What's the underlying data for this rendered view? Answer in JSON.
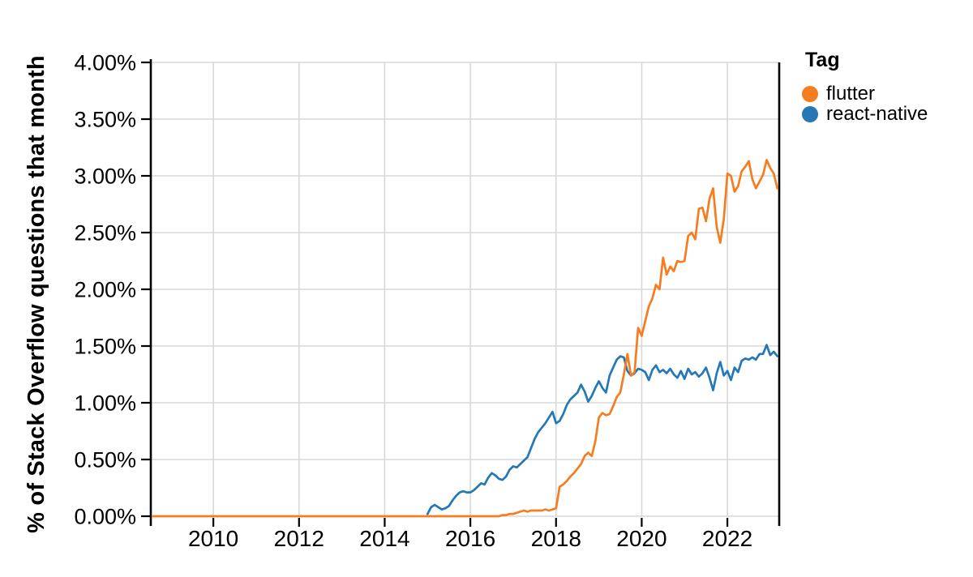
{
  "page": {
    "background": "#ffffff"
  },
  "axes": {
    "line_color": "#000000",
    "grid_color": "#d8d8d8",
    "tick_label_color": "#000000"
  },
  "chart_data": {
    "type": "line",
    "title": "",
    "xlabel": "",
    "ylabel": "% of Stack Overflow questions that month",
    "grid": true,
    "xlim": [
      2008.54,
      2023.21
    ],
    "ylim": [
      0,
      4
    ],
    "x_tick_years": [
      2010,
      2012,
      2014,
      2016,
      2018,
      2020,
      2022
    ],
    "x_tick_labels": [
      "2010",
      "2012",
      "2014",
      "2016",
      "2018",
      "2020",
      "2022"
    ],
    "y_tick_values": [
      0,
      0.5,
      1,
      1.5,
      2,
      2.5,
      3,
      3.5,
      4
    ],
    "y_tick_labels": [
      "0.00%",
      "0.50%",
      "1.00%",
      "1.50%",
      "2.00%",
      "2.50%",
      "3.00%",
      "3.50%",
      "4.00%"
    ],
    "legend": {
      "title": "Tag",
      "position": "right"
    },
    "series": [
      {
        "name": "react-native",
        "color": "#2478b5",
        "start_year": 2015,
        "start_month": 1,
        "monthly_percent": [
          0.02,
          0.08,
          0.1,
          0.08,
          0.06,
          0.07,
          0.09,
          0.14,
          0.18,
          0.21,
          0.22,
          0.21,
          0.21,
          0.23,
          0.26,
          0.29,
          0.28,
          0.34,
          0.38,
          0.36,
          0.33,
          0.32,
          0.35,
          0.41,
          0.44,
          0.43,
          0.46,
          0.49,
          0.52,
          0.6,
          0.68,
          0.74,
          0.78,
          0.82,
          0.87,
          0.92,
          0.82,
          0.84,
          0.9,
          0.98,
          1.03,
          1.06,
          1.09,
          1.16,
          1.1,
          1.01,
          1.06,
          1.13,
          1.19,
          1.13,
          1.09,
          1.24,
          1.31,
          1.38,
          1.41,
          1.4,
          1.28,
          1.24,
          1.26,
          1.3,
          1.29,
          1.27,
          1.2,
          1.29,
          1.33,
          1.27,
          1.29,
          1.26,
          1.3,
          1.25,
          1.22,
          1.28,
          1.21,
          1.3,
          1.25,
          1.27,
          1.23,
          1.26,
          1.31,
          1.22,
          1.11,
          1.26,
          1.36,
          1.24,
          1.28,
          1.2,
          1.31,
          1.27,
          1.37,
          1.39,
          1.38,
          1.4,
          1.38,
          1.43,
          1.43,
          1.51,
          1.42,
          1.45,
          1.41
        ]
      },
      {
        "name": "flutter",
        "color": "#f57c1f",
        "start_year": 2008,
        "start_month": 8,
        "monthly_percent": [
          0,
          0,
          0,
          0,
          0,
          0,
          0,
          0,
          0,
          0,
          0,
          0,
          0,
          0,
          0,
          0,
          0,
          0,
          0,
          0,
          0,
          0,
          0,
          0,
          0,
          0,
          0,
          0,
          0,
          0,
          0,
          0,
          0,
          0,
          0,
          0,
          0,
          0,
          0,
          0,
          0,
          0,
          0,
          0,
          0,
          0,
          0,
          0,
          0,
          0,
          0,
          0,
          0,
          0,
          0,
          0,
          0,
          0,
          0,
          0,
          0,
          0,
          0,
          0,
          0,
          0,
          0,
          0,
          0,
          0,
          0,
          0,
          0,
          0,
          0,
          0,
          0,
          0,
          0,
          0,
          0,
          0,
          0,
          0,
          0,
          0,
          0,
          0,
          0,
          0,
          0,
          0,
          0,
          0,
          0,
          0,
          0,
          0,
          0.01,
          0.01,
          0.02,
          0.02,
          0.03,
          0.04,
          0.05,
          0.04,
          0.05,
          0.05,
          0.05,
          0.05,
          0.06,
          0.05,
          0.06,
          0.07,
          0.26,
          0.28,
          0.31,
          0.35,
          0.38,
          0.42,
          0.46,
          0.53,
          0.56,
          0.53,
          0.66,
          0.87,
          0.91,
          0.89,
          0.9,
          0.97,
          1.05,
          1.09,
          1.25,
          1.43,
          1.24,
          1.27,
          1.66,
          1.59,
          1.72,
          1.85,
          1.92,
          2.04,
          2.0,
          2.28,
          2.13,
          2.2,
          2.16,
          2.25,
          2.24,
          2.25,
          2.47,
          2.5,
          2.44,
          2.71,
          2.72,
          2.6,
          2.8,
          2.89,
          2.55,
          2.41,
          2.62,
          3.02,
          3.0,
          2.86,
          2.91,
          3.04,
          3.08,
          3.13,
          2.97,
          2.89,
          2.95,
          3.01,
          3.14,
          3.07,
          3.02,
          2.89
        ]
      }
    ],
    "legend_order": [
      "flutter",
      "react-native"
    ]
  }
}
